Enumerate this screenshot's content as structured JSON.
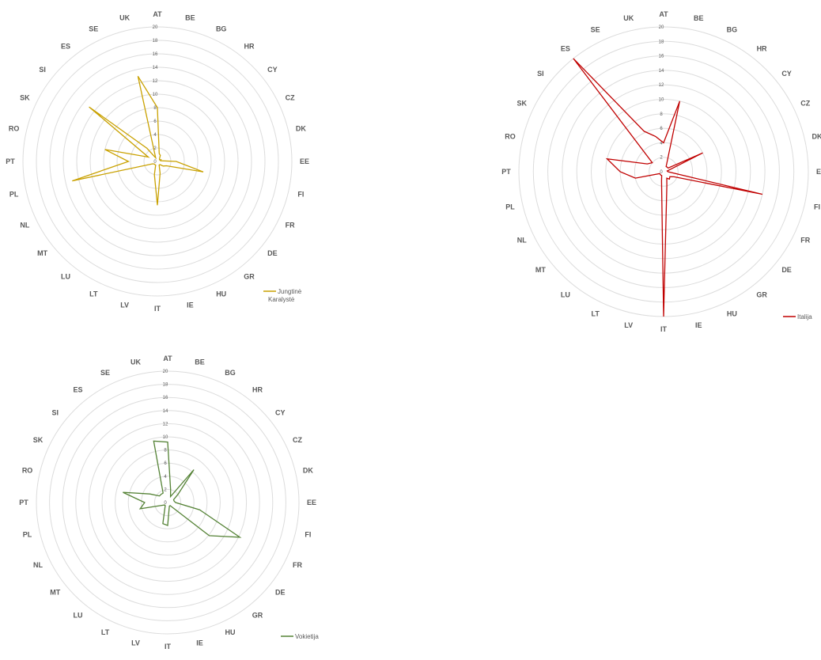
{
  "chart_data": [
    {
      "type": "radar",
      "categories": [
        "AT",
        "BE",
        "BG",
        "HR",
        "CY",
        "CZ",
        "DK",
        "EE",
        "FI",
        "FR",
        "DE",
        "GR",
        "HU",
        "IE",
        "IT",
        "LV",
        "LT",
        "LU",
        "MT",
        "NL",
        "PL",
        "PT",
        "RO",
        "SK",
        "SI",
        "ES",
        "SE",
        "UK"
      ],
      "rlim": [
        0,
        20
      ],
      "ticks": [
        "0",
        "2",
        "4",
        "6",
        "8",
        "10",
        "12",
        "14",
        "16",
        "18",
        "20"
      ],
      "series": [
        {
          "name": "Jungtinė Karalystė",
          "color": "#C9A100",
          "values": [
            8,
            1.2,
            1,
            0.5,
            0.4,
            0.6,
            0.5,
            2.8,
            7,
            1.5,
            1.1,
            0.6,
            0.6,
            1.8,
            6.5,
            2,
            0.6,
            0.6,
            0.6,
            0.8,
            13,
            4.3,
            8,
            1.5,
            13,
            2.5,
            0.6,
            13
          ]
        },
        {
          "name": "Italija",
          "color": "#C00000",
          "values": [
            4,
            10,
            0.8,
            0.8,
            0.8,
            6,
            0.5,
            0.6,
            14,
            1.6,
            1.1,
            1.3,
            1,
            2,
            20,
            1.3,
            0.6,
            0.6,
            0.6,
            0.6,
            4,
            6,
            8,
            2.5,
            2,
            20,
            6.2,
            5
          ]
        },
        {
          "name": "Vokietija",
          "color": "#548235",
          "values": [
            9.2,
            2,
            1,
            6.4,
            2,
            1,
            1,
            1.2,
            5,
            12.2,
            8.1,
            0.6,
            0.6,
            1,
            3.5,
            3.3,
            1,
            0.6,
            0.6,
            1,
            4.3,
            3.5,
            7,
            3,
            1.6,
            1.6,
            1.6,
            9.6
          ]
        }
      ]
    }
  ]
}
